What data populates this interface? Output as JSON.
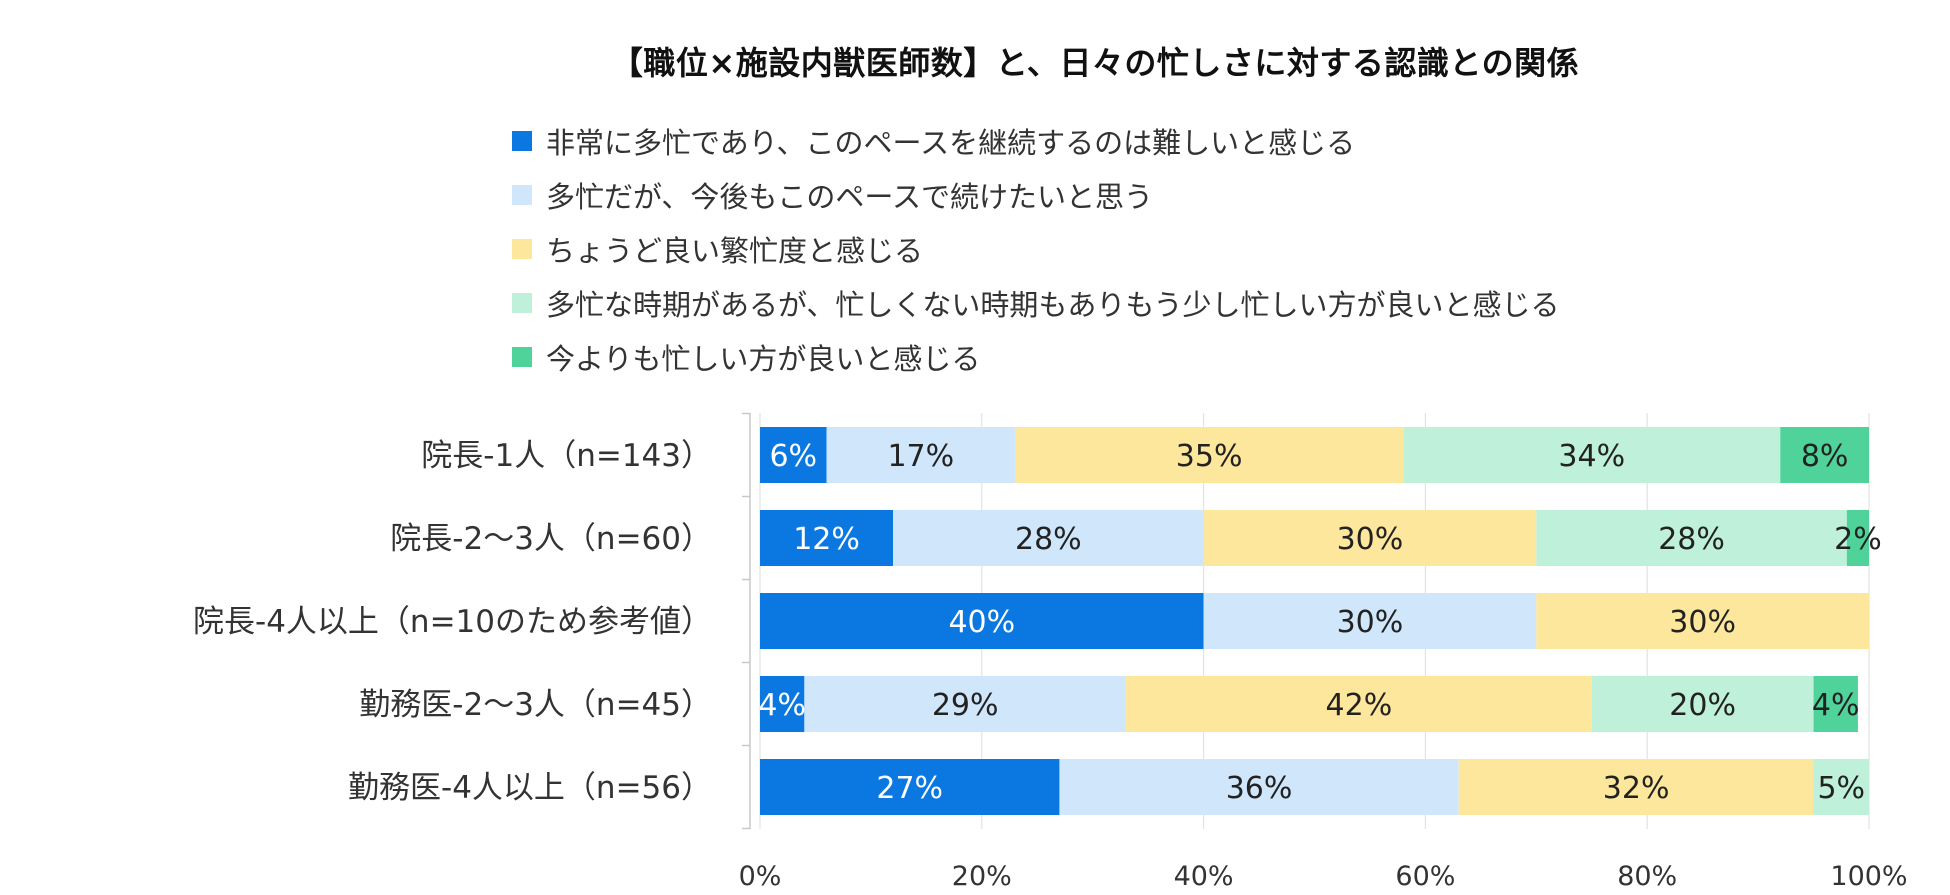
{
  "chart_data": {
    "type": "bar",
    "orientation": "horizontal",
    "stacked": true,
    "title": "【職位×施設内獣医師数】と、日々の忙しさに対する認識との関係",
    "categories": [
      "院長-1人（n=143）",
      "院長-2～3人（n=60）",
      "院長-4人以上（n=10のため参考値）",
      "勤務医-2～3人（n=45）",
      "勤務医-4人以上（n=56）"
    ],
    "series": [
      {
        "name": "非常に多忙であり、このペースを継続するのは難しいと感じる",
        "color": "#0a78e0",
        "label_color": "#ffffff",
        "values": [
          6,
          12,
          40,
          4,
          27
        ],
        "labels": [
          "6%",
          "12%",
          "40%",
          "4%",
          "27%"
        ]
      },
      {
        "name": "多忙だが、今後もこのペースで続けたいと思う",
        "color": "#cfe6fb",
        "label_color": "#222222",
        "values": [
          17,
          28,
          30,
          29,
          36
        ],
        "labels": [
          "17%",
          "28%",
          "30%",
          "29%",
          "36%"
        ]
      },
      {
        "name": "ちょうど良い繁忙度と感じる",
        "color": "#fde79c",
        "label_color": "#222222",
        "values": [
          35,
          30,
          30,
          42,
          32
        ],
        "labels": [
          "35%",
          "30%",
          "30%",
          "42%",
          "32%"
        ]
      },
      {
        "name": "多忙な時期があるが、忙しくない時期もありもう少し忙しい方が良いと感じる",
        "color": "#bff0da",
        "label_color": "#222222",
        "values": [
          34,
          28,
          0,
          20,
          5
        ],
        "labels": [
          "34%",
          "28%",
          "",
          "20%",
          "5%"
        ]
      },
      {
        "name": "今よりも忙しい方が良いと感じる",
        "color": "#4fd39b",
        "label_color": "#222222",
        "values": [
          8,
          2,
          0,
          4,
          0
        ],
        "labels": [
          "8%",
          "2%",
          "",
          "4%",
          ""
        ]
      }
    ],
    "xlim": [
      0,
      100
    ],
    "xticks": [
      "0%",
      "20%",
      "40%",
      "60%",
      "80%",
      "100%"
    ],
    "grid": true,
    "legend_position": "top"
  }
}
